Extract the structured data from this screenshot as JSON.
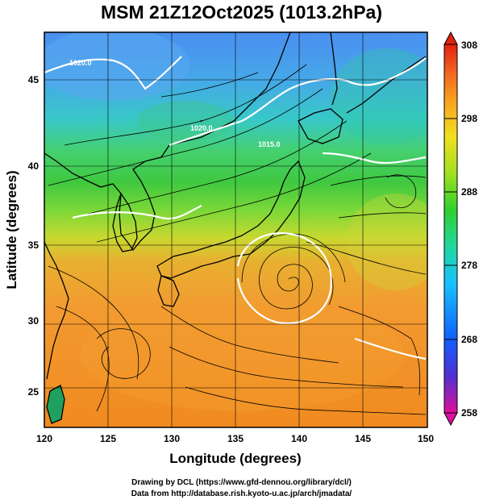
{
  "title": "MSM 21Z12Oct2025 (1013.2hPa)",
  "x_axis": {
    "title": "Longitude (degrees)",
    "range": [
      120,
      150
    ],
    "ticks": [
      "120",
      "125",
      "130",
      "135",
      "140",
      "145",
      "150"
    ]
  },
  "y_axis": {
    "title": "Latitude  (degrees)",
    "range": [
      22.5,
      47.5
    ],
    "ticks": [
      "25",
      "30",
      "35",
      "40",
      "45"
    ]
  },
  "colorbar": {
    "ticks": [
      "308",
      "298",
      "288",
      "278",
      "268",
      "258"
    ],
    "range": [
      258,
      308
    ],
    "colors": [
      "#e0109a",
      "#5030d0",
      "#1060ff",
      "#18c0ff",
      "#20d8a0",
      "#30d030",
      "#a0e020",
      "#f0e020",
      "#f8a020",
      "#f06020",
      "#e02010"
    ]
  },
  "isobars": [
    {
      "label": "1020.0"
    },
    {
      "label": "1020.0"
    },
    {
      "label": "1015.0"
    }
  ],
  "typhoon_center": {
    "lon": 139,
    "lat": 32.5
  },
  "credits": {
    "line1": "Drawing by DCL (https://www.gfd-dennou.org/library/dcl/)",
    "line2": "Data from http://database.rish.kyoto-u.ac.jp/arch/jmadata/"
  },
  "colors": {
    "land_outline": "#000000",
    "isobar": "#ffffff",
    "streamline": "#000000"
  }
}
